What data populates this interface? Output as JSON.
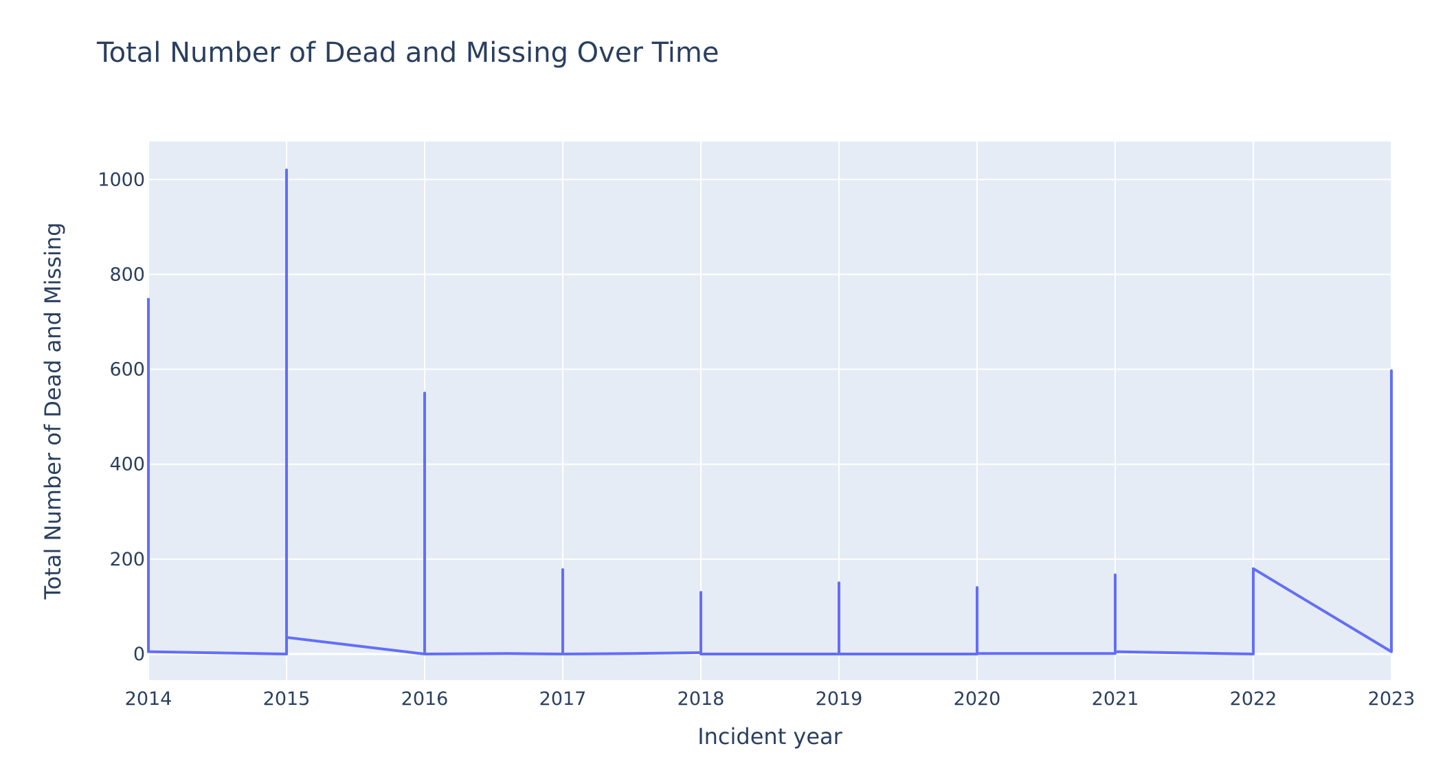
{
  "chart_data": {
    "type": "line",
    "title": "Total Number of Dead and Missing Over Time",
    "xlabel": "Incident year",
    "ylabel": "Total Number of Dead and Missing",
    "xlim": [
      2014,
      2023
    ],
    "ylim": [
      -55,
      1080
    ],
    "x_ticks": [
      2014,
      2015,
      2016,
      2017,
      2018,
      2019,
      2020,
      2021,
      2022,
      2023
    ],
    "y_ticks": [
      0,
      200,
      400,
      600,
      800,
      1000
    ],
    "grid": true,
    "colors": {
      "line": "#636efa",
      "plot_bg": "#e5ecf6",
      "grid": "#ffffff",
      "text": "#2a3f5f"
    },
    "series": [
      {
        "x": [
          2014,
          2014,
          2015,
          2015,
          2015,
          2016,
          2016,
          2016,
          2016.6,
          2017,
          2017,
          2017,
          2017.5,
          2018,
          2018,
          2018,
          2018.5,
          2019,
          2019,
          2019,
          2019.5,
          2020,
          2020,
          2020,
          2020.5,
          2021,
          2021,
          2021,
          2022,
          2022,
          2022,
          2023,
          2023,
          2023
        ],
        "y": [
          750,
          5,
          0,
          1020,
          35,
          0,
          550,
          0,
          1,
          0,
          178,
          0,
          1,
          3,
          130,
          0,
          0,
          0,
          150,
          0,
          0,
          0,
          140,
          1,
          1,
          1,
          167,
          5,
          0,
          180,
          180,
          5,
          597,
          5
        ]
      }
    ]
  }
}
